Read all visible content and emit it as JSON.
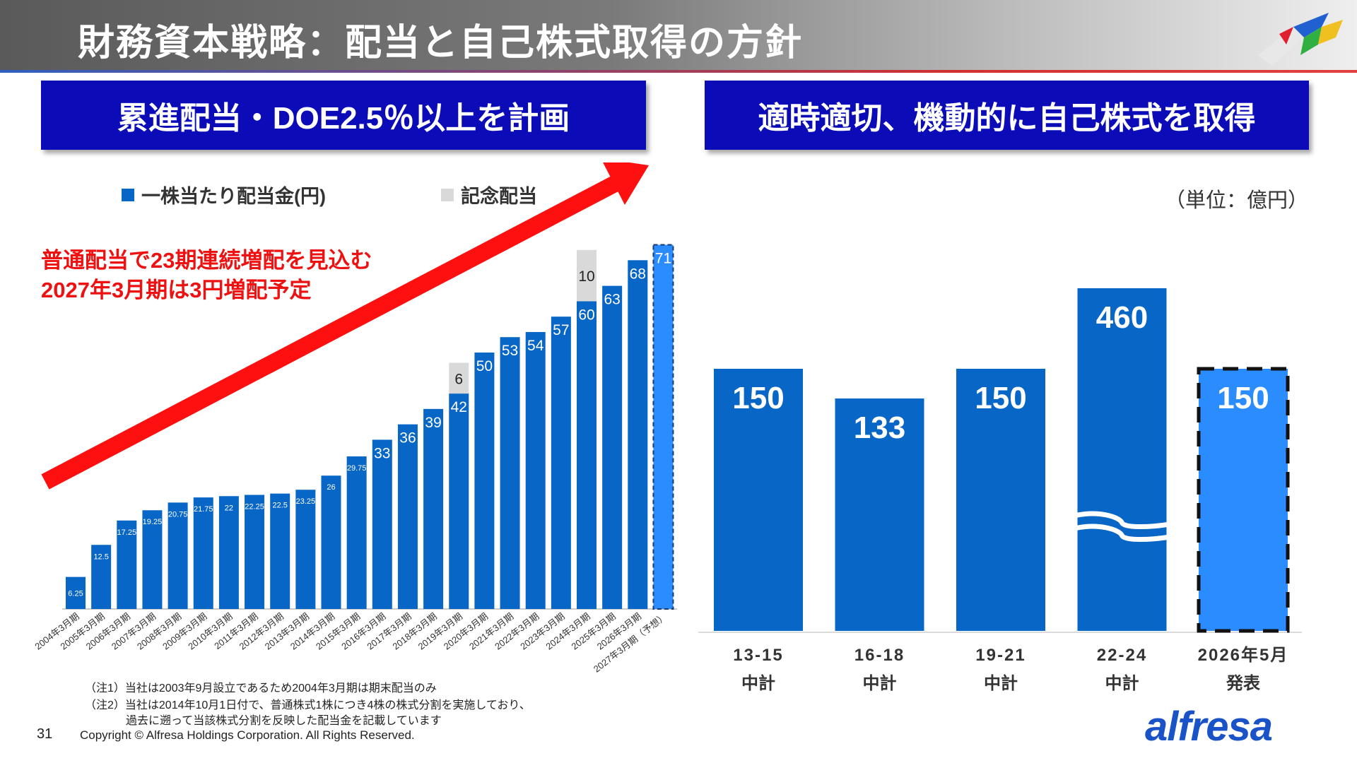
{
  "header": {
    "title": "財務資本戦略：配当と自己株式取得の方針"
  },
  "left": {
    "banner": "累進配当・DOE2.5％以上を計画",
    "callout_line1": "普通配当で23期連続増配を見込む",
    "callout_line2": "2027年3月期は3円増配予定",
    "notes": [
      "（注1）当社は2003年9月設立であるため2004年3月期は期末配当のみ",
      "（注2）当社は2014年10月1日付で、普通株式1株につき4株の株式分割を実施しており、",
      "過去に遡って当該株式分割を反映した配当金を記載しています"
    ]
  },
  "right": {
    "banner": "適時適切、機動的に自己株式を取得",
    "unit": "（単位：億円）"
  },
  "footer": {
    "page_number": "31",
    "copyright": "Copyright © Alfresa Holdings Corporation. All Rights Reserved.",
    "logo_text": "alfresa"
  },
  "colors": {
    "bar": "#0866c6",
    "forecast": "#2b8cff",
    "commemorative": "#d9d9d9",
    "banner": "#0b0bb8",
    "arrow": "#ff1010",
    "callout": "#ee1111"
  },
  "chart_data": [
    {
      "type": "bar",
      "stacked": true,
      "legend_position": "top",
      "categories": [
        "2004年3月期",
        "2005年3月期",
        "2006年3月期",
        "2007年3月期",
        "2008年3月期",
        "2009年3月期",
        "2010年3月期",
        "2011年3月期",
        "2012年3月期",
        "2013年3月期",
        "2014年3月期",
        "2015年3月期",
        "2016年3月期",
        "2017年3月期",
        "2018年3月期",
        "2019年3月期",
        "2020年3月期",
        "2021年3月期",
        "2022年3月期",
        "2023年3月期",
        "2024年3月期",
        "2025年3月期",
        "2026年3月期",
        "2027年3月期（予想）"
      ],
      "series": [
        {
          "name": "一株当たり配当金(円)",
          "values": [
            6.25,
            12.5,
            17.25,
            19.25,
            20.75,
            21.75,
            22,
            22.25,
            22.5,
            23.25,
            26,
            29.75,
            33,
            36,
            39,
            42,
            50,
            53,
            54,
            57,
            60,
            63,
            68,
            71
          ],
          "labels": [
            "6.25",
            "12.5",
            "17.25",
            "19.25",
            "20.75",
            "21.75",
            "22",
            "22.25",
            "22.5",
            "23.25",
            "26",
            "29.75",
            "33",
            "36",
            "39",
            "42",
            "50",
            "53",
            "54",
            "57",
            "60",
            "63",
            "68",
            "71"
          ]
        },
        {
          "name": "記念配当",
          "values": [
            0,
            0,
            0,
            0,
            0,
            0,
            0,
            0,
            0,
            0,
            0,
            0,
            0,
            0,
            0,
            6,
            0,
            0,
            0,
            0,
            10,
            0,
            0,
            0
          ],
          "labels": [
            "",
            "",
            "",
            "",
            "",
            "",
            "",
            "",
            "",
            "",
            "",
            "",
            "",
            "",
            "",
            "6",
            "",
            "",
            "",
            "",
            "10",
            "",
            "",
            ""
          ]
        }
      ],
      "forecast_index": 23
    },
    {
      "type": "bar",
      "categories": [
        [
          "13-15",
          "中計"
        ],
        [
          "16-18",
          "中計"
        ],
        [
          "19-21",
          "中計"
        ],
        [
          "22-24",
          "中計"
        ],
        [
          "2026年5月",
          "発表"
        ]
      ],
      "values": [
        150,
        133,
        150,
        460,
        150
      ],
      "axis_break_index": 3,
      "highlight_index": 4
    }
  ]
}
